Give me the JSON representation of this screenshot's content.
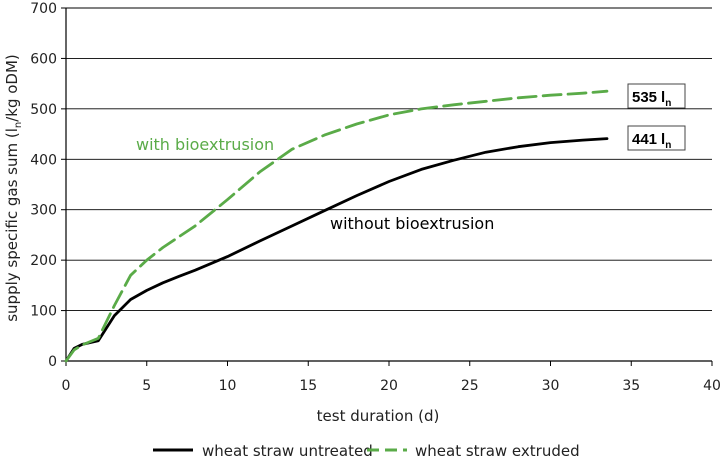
{
  "chart_data": {
    "type": "line",
    "xlabel": "test duration (d)",
    "ylabel": "supply specific gas sum (l",
    "ylabel_sub": "n",
    "ylabel_tail": "/kg oDM)",
    "xlim": [
      0,
      40
    ],
    "ylim": [
      0,
      700
    ],
    "xticks": [
      0,
      5,
      10,
      15,
      20,
      25,
      30,
      35,
      40
    ],
    "yticks": [
      0,
      100,
      200,
      300,
      400,
      500,
      600,
      700
    ],
    "grid": "horizontal",
    "legend_position": "bottom",
    "series": [
      {
        "name": "wheat straw untreated",
        "color": "#000000",
        "dash": "solid",
        "x": [
          0,
          0.5,
          1,
          2,
          3,
          4,
          5,
          6,
          7,
          8,
          10,
          12,
          14,
          16,
          18,
          20,
          22,
          24,
          26,
          28,
          30,
          32,
          33.5
        ],
        "y": [
          0,
          25,
          33,
          40,
          90,
          122,
          140,
          155,
          168,
          180,
          207,
          238,
          268,
          298,
          328,
          356,
          380,
          398,
          414,
          425,
          433,
          438,
          441
        ]
      },
      {
        "name": "wheat straw extruded",
        "color": "#5aab48",
        "dash": "dashed",
        "x": [
          0,
          0.5,
          1,
          2,
          3,
          4,
          5,
          6,
          8,
          10,
          12,
          14,
          16,
          18,
          20,
          22,
          24,
          26,
          28,
          30,
          32,
          33.5
        ],
        "y": [
          0,
          22,
          32,
          45,
          110,
          170,
          200,
          225,
          268,
          320,
          375,
          420,
          448,
          470,
          488,
          500,
          508,
          515,
          522,
          527,
          531,
          535
        ]
      }
    ],
    "annotations": [
      {
        "text": "with bioextrusion",
        "x": 13,
        "y": 430,
        "color": "#5aab48"
      },
      {
        "text": "without bioextrusion",
        "x": 20.5,
        "y": 270,
        "color": "#000000"
      }
    ],
    "end_labels": [
      {
        "value": "535",
        "unit": "l",
        "unit_sub": "n"
      },
      {
        "value": "441",
        "unit": "l",
        "unit_sub": "n"
      }
    ]
  }
}
